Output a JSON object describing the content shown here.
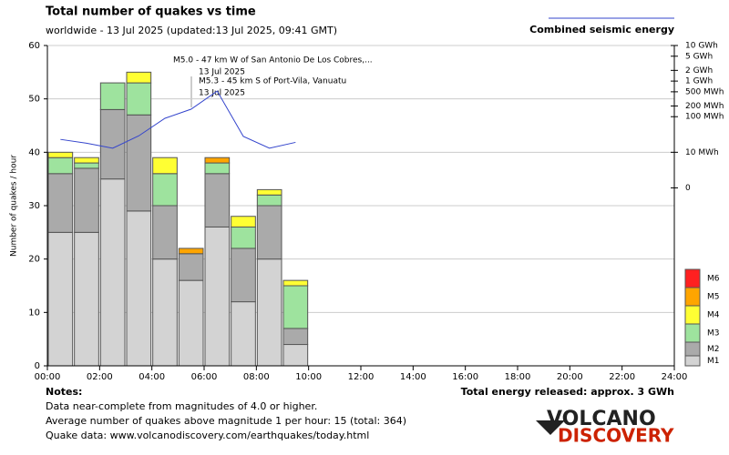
{
  "chart_data": {
    "type": "stacked_histogram",
    "title": "Total number of quakes vs time",
    "subtitle": "worldwide - 13 Jul 2025 (updated:13 Jul 2025, 09:41 GMT)",
    "ylabel": "Number of quakes / hour",
    "bins": [
      0,
      1,
      2,
      3,
      4,
      5,
      6,
      7,
      8,
      9,
      10
    ],
    "xlim": [
      0,
      24
    ],
    "xticks": [
      {
        "value": 0,
        "label": "00:00"
      },
      {
        "value": 2,
        "label": "02:00"
      },
      {
        "value": 4,
        "label": "04:00"
      },
      {
        "value": 6,
        "label": "06:00"
      },
      {
        "value": 8,
        "label": "08:00"
      },
      {
        "value": 10,
        "label": "10:00"
      },
      {
        "value": 12,
        "label": "12:00"
      },
      {
        "value": 14,
        "label": "14:00"
      },
      {
        "value": 16,
        "label": "16:00"
      },
      {
        "value": 18,
        "label": "18:00"
      },
      {
        "value": 20,
        "label": "20:00"
      },
      {
        "value": 22,
        "label": "22:00"
      },
      {
        "value": 24,
        "label": "24:00"
      }
    ],
    "ylim": [
      0,
      60
    ],
    "yticks": [
      0,
      10,
      20,
      30,
      40,
      50,
      60
    ],
    "grid": true,
    "series": [
      {
        "name": "M1",
        "color": "#d3d3d3",
        "values": [
          25,
          25,
          35,
          29,
          20,
          16,
          26,
          12,
          20,
          4
        ]
      },
      {
        "name": "M2",
        "color": "#aaaaaa",
        "values": [
          11,
          12,
          13,
          18,
          10,
          5,
          10,
          10,
          10,
          3
        ]
      },
      {
        "name": "M3",
        "color": "#9ee39e",
        "values": [
          3,
          1,
          5,
          6,
          6,
          0,
          2,
          4,
          2,
          8
        ]
      },
      {
        "name": "M4",
        "color": "#ffff33",
        "values": [
          1,
          1,
          0,
          2,
          3,
          0,
          0,
          2,
          1,
          1
        ]
      },
      {
        "name": "M5",
        "color": "#ffa500",
        "values": [
          0,
          0,
          0,
          0,
          0,
          1,
          1,
          0,
          0,
          0
        ]
      },
      {
        "name": "M6",
        "color": "#ff2020",
        "values": [
          0,
          0,
          0,
          0,
          0,
          0,
          0,
          0,
          0,
          0
        ]
      }
    ],
    "energy": {
      "name": "Combined seismic energy",
      "color": "#3344cc",
      "axis": "y2",
      "x": [
        0.5,
        1.5,
        2.5,
        3.5,
        4.5,
        5.5,
        6.5,
        7.5,
        8.5,
        9.5
      ],
      "values": [
        23,
        18,
        13,
        29,
        90,
        162,
        525,
        28,
        13,
        19
      ]
    },
    "y2scale": "log",
    "y2lim": [
      1e-05,
      10000
    ],
    "y2ticks": [
      {
        "value": 10000,
        "label": "10 GWh"
      },
      {
        "value": 5000,
        "label": "5 GWh"
      },
      {
        "value": 2000,
        "label": "2 GWh"
      },
      {
        "value": 1000,
        "label": "1 GWh"
      },
      {
        "value": 500,
        "label": "500 MWh"
      },
      {
        "value": 200,
        "label": "200 MWh"
      },
      {
        "value": 100,
        "label": "100 MWh"
      },
      {
        "value": 10,
        "label": "10 MWh"
      },
      {
        "value": 1,
        "label": "0"
      }
    ],
    "annotations": [
      "M5.0 - 47 km W of San Antonio De Los Cobres,...",
      "13 Jul 2025",
      "M5.3 - 45 km S of Port-Vila, Vanuatu",
      "13 Jul 2025"
    ],
    "notes_title": "Notes:",
    "notes": [
      "Data near-complete from magnitudes of 4.0 or higher.",
      "Average number of quakes above magnitude 1 per hour: 15 (total: 364)",
      "Quake data: www.volcanodiscovery.com/earthquakes/today.html"
    ],
    "total_energy": "Total energy released: approx. 3 GWh",
    "logo": [
      "VOLCANO",
      "DISCOVERY"
    ]
  }
}
